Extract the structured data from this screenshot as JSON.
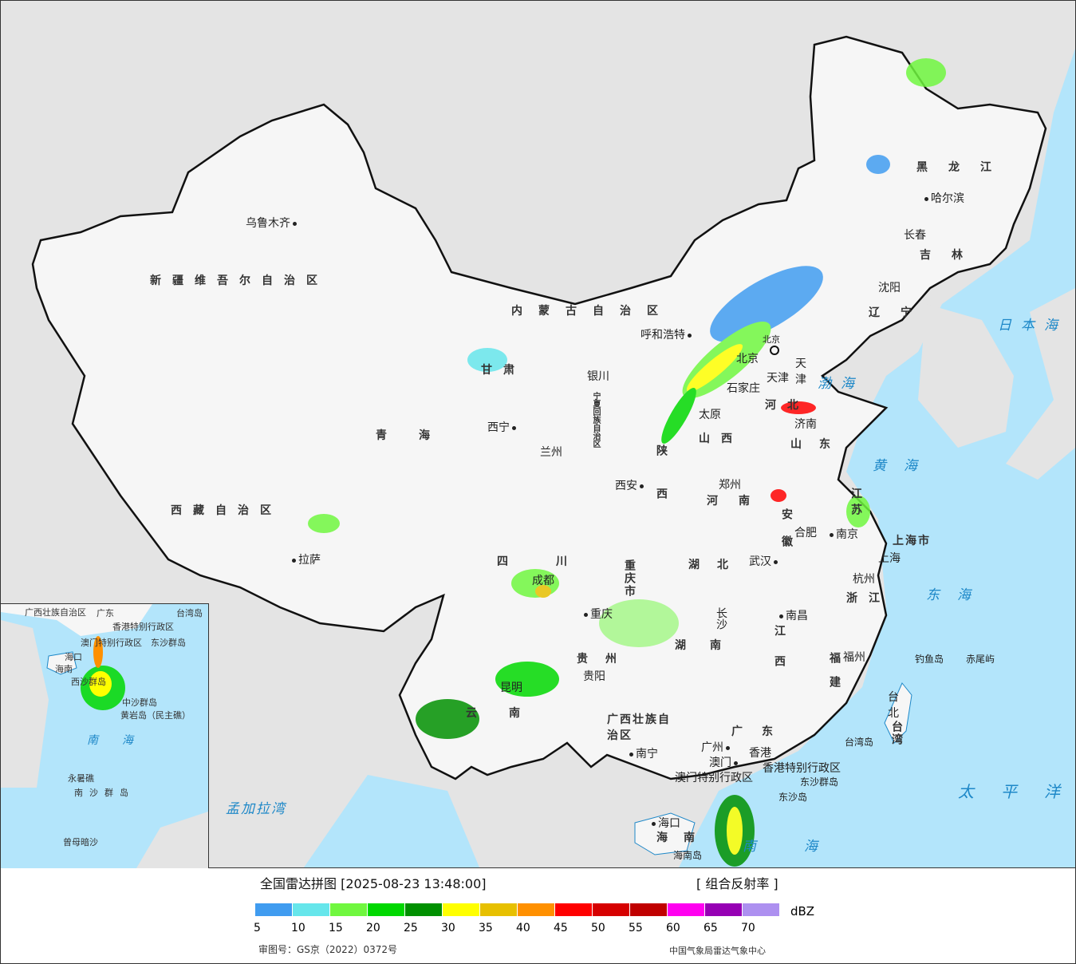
{
  "title": "全国雷达拼图 [2025-08-23 13:48:00]",
  "product": "[ 组合反射率 ]",
  "unit": "dBZ",
  "approval": "审图号：GS京（2022）0372号",
  "organization": "中国气象局雷达气象中心",
  "legend": {
    "colors": [
      "#409cf0",
      "#66e6eb",
      "#70f73f",
      "#00d800",
      "#009000",
      "#ffff00",
      "#e7c000",
      "#ff9000",
      "#ff0000",
      "#d60000",
      "#c00000",
      "#ff00f0",
      "#9600b4",
      "#ad90f0"
    ],
    "ticks": [
      "5",
      "10",
      "15",
      "20",
      "25",
      "30",
      "35",
      "40",
      "45",
      "50",
      "55",
      "60",
      "65",
      "70"
    ]
  },
  "colors": {
    "sea": "#b3e5fb",
    "land": "#e4e4e4",
    "china": "#f6f6f6",
    "border": "#111111"
  },
  "regions": [
    "新疆维吾尔自治区",
    "西藏自治区",
    "青海",
    "甘肃",
    "内蒙古自治区",
    "黑龙江",
    "吉林",
    "辽宁",
    "河北",
    "山西",
    "山东",
    "河南",
    "陕西",
    "四川",
    "重庆市",
    "湖北",
    "安徽",
    "江苏",
    "上海市",
    "浙江",
    "江西",
    "湖南",
    "贵州",
    "云南",
    "广西壮族自治区",
    "广东",
    "福建",
    "台湾",
    "海南",
    "宁夏回族自治区",
    "北京",
    "天津",
    "香港特别行政区",
    "澳门特别行政区"
  ],
  "cities": [
    "乌鲁木齐",
    "拉萨",
    "西宁",
    "兰州",
    "银川",
    "呼和浩特",
    "北京",
    "天津",
    "石家庄",
    "太原",
    "济南",
    "郑州",
    "西安",
    "成都",
    "重庆",
    "武汉",
    "合肥",
    "南京",
    "上海",
    "杭州",
    "南昌",
    "长沙",
    "福州",
    "台北",
    "广州",
    "香港",
    "澳门",
    "南宁",
    "海口",
    "贵阳",
    "昆明",
    "长春",
    "哈尔滨",
    "沈阳"
  ],
  "islands": [
    "钓鱼岛",
    "赤尾屿",
    "台湾岛",
    "东沙群岛",
    "东沙岛",
    "海南岛"
  ],
  "seas": [
    "日本海",
    "渤海",
    "黄海",
    "东海",
    "太平洋",
    "南海",
    "孟加拉湾"
  ],
  "inset": {
    "labels": [
      "广西壮族自治区",
      "广东",
      "香港特别行政区",
      "澳门特别行政区",
      "海口",
      "海南",
      "东沙群岛",
      "西沙群岛",
      "中沙群岛",
      "黄岩岛（民主礁）",
      "南海",
      "永暑礁",
      "南沙群岛",
      "曾母暗沙",
      "台湾岛"
    ]
  }
}
